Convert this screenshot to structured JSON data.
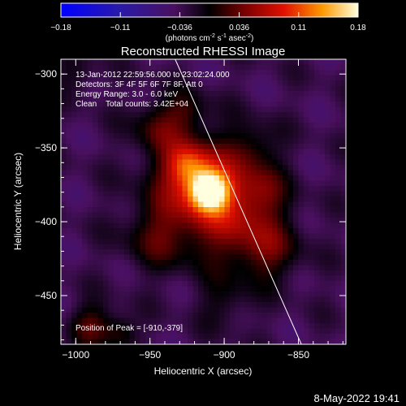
{
  "colorbar": {
    "tick_labels": [
      "-0.18",
      "-0.11",
      "-0.036",
      "0.036",
      "0.11",
      "0.18"
    ],
    "range": [
      -0.18,
      0.18
    ],
    "units_prefix": "(photons cm",
    "units_exp1": "-2",
    "units_mid1": " s",
    "units_exp2": "-1",
    "units_mid2": " asec",
    "units_exp3": "-2",
    "units_suffix": ")"
  },
  "chart_data": {
    "type": "heatmap",
    "title": "Reconstructed RHESSI Image",
    "xlabel": "Heliocentric X (arcsec)",
    "ylabel": "Heliocentric Y (arcsec)",
    "xlim": [
      -1010,
      -818
    ],
    "ylim": [
      -483,
      -290
    ],
    "x_ticks": [
      {
        "value": -1000,
        "label": "−1000"
      },
      {
        "value": -950,
        "label": "−950"
      },
      {
        "value": -900,
        "label": "−900"
      },
      {
        "value": -850,
        "label": "−850"
      }
    ],
    "y_ticks": [
      {
        "value": -300,
        "label": "−300"
      },
      {
        "value": -350,
        "label": "−350"
      },
      {
        "value": -400,
        "label": "−400"
      },
      {
        "value": -450,
        "label": "−450"
      }
    ],
    "info_lines": [
      "13-Jan-2012 22:59:56.000 to 23:02:24.000",
      "Detectors: 3F 4F 5F 6F 7F 8F, Att 0",
      "Energy Range: 3.0 - 6.0 keV",
      "Clean    Total counts: 3.42E+04"
    ],
    "peak_label": "Position of Peak = [-910,-379]",
    "peak": [
      -910,
      -379
    ],
    "limb_line": [
      [
        -933,
        -290
      ],
      [
        -848,
        -483
      ]
    ],
    "sources": [
      {
        "x": -910,
        "y": -379,
        "sigma": 9,
        "amp": 0.17
      },
      {
        "x": -925,
        "y": -362,
        "sigma": 10,
        "amp": 0.08
      },
      {
        "x": -918,
        "y": -372,
        "sigma": 22,
        "amp": 0.09
      },
      {
        "x": -895,
        "y": -400,
        "sigma": 22,
        "amp": 0.07
      },
      {
        "x": -945,
        "y": -335,
        "sigma": 12,
        "amp": 0.05
      },
      {
        "x": -925,
        "y": -325,
        "sigma": 10,
        "amp": 0.04
      },
      {
        "x": -880,
        "y": -350,
        "sigma": 12,
        "amp": 0.04
      },
      {
        "x": -870,
        "y": -420,
        "sigma": 15,
        "amp": 0.05
      },
      {
        "x": -945,
        "y": -410,
        "sigma": 16,
        "amp": 0.05
      },
      {
        "x": -875,
        "y": -380,
        "sigma": 12,
        "amp": 0.045
      },
      {
        "x": -990,
        "y": -470,
        "sigma": 10,
        "amp": 0.06
      },
      {
        "x": -970,
        "y": -475,
        "sigma": 8,
        "amp": 0.05
      },
      {
        "x": -1000,
        "y": -300,
        "sigma": 10,
        "amp": 0.03
      },
      {
        "x": -900,
        "y": -455,
        "sigma": 12,
        "amp": 0.03
      }
    ],
    "grid": false
  },
  "footer": {
    "date_label": "8-May-2022 19:41"
  }
}
